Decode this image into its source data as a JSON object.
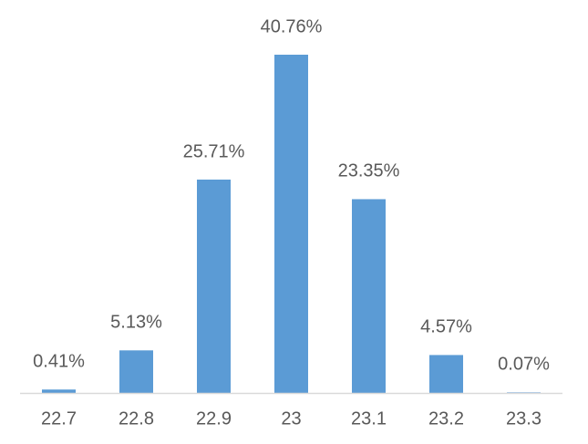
{
  "chart_data": {
    "type": "bar",
    "categories": [
      "22.7",
      "22.8",
      "22.9",
      "23",
      "23.1",
      "23.2",
      "23.3"
    ],
    "values": [
      0.41,
      5.13,
      25.71,
      40.76,
      23.35,
      4.57,
      0.07
    ],
    "value_labels": [
      "0.41%",
      "5.13%",
      "25.71%",
      "40.76%",
      "23.35%",
      "4.57%",
      "0.07%"
    ],
    "color": "#5b9bd5"
  }
}
